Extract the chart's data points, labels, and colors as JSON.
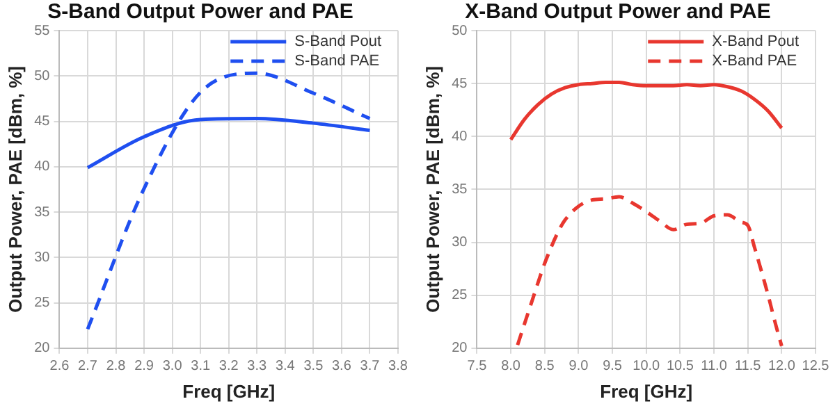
{
  "chart_data": [
    {
      "type": "line",
      "title": "S-Band Output Power and PAE",
      "xlabel": "Freq [GHz]",
      "ylabel": "Output Power, PAE [dBm, %]",
      "xlim": [
        2.6,
        3.8
      ],
      "xticks": [
        2.6,
        2.7,
        2.8,
        2.9,
        {
          "value": 3.0,
          "label": "3.0"
        },
        3.1,
        3.2,
        3.3,
        3.4,
        3.5,
        3.6,
        3.7,
        3.8
      ],
      "ylim": [
        20,
        55
      ],
      "yticks": [
        20,
        25,
        30,
        35,
        40,
        45,
        50,
        55
      ],
      "grid": true,
      "legend": "top right",
      "series": [
        {
          "name": "S-Band Pout",
          "color": "#1f4ff0",
          "line_style": "solid",
          "x": [
            2.7,
            2.9,
            3.1,
            3.3,
            3.5,
            3.7
          ],
          "values": [
            39.9,
            43.3,
            45.2,
            45.3,
            44.8,
            44.0
          ]
        },
        {
          "name": "S-Band PAE",
          "color": "#1f4ff0",
          "line_style": "dashed",
          "x": [
            2.7,
            2.9,
            3.1,
            3.3,
            3.5,
            3.7
          ],
          "values": [
            22.1,
            37.6,
            48.2,
            50.3,
            48.1,
            45.3
          ]
        }
      ]
    },
    {
      "type": "line",
      "title": "X-Band Output Power and PAE",
      "xlabel": "Freq [GHz]",
      "ylabel": "Output Power, PAE [dBm, %]",
      "xlim": [
        7.5,
        12.5
      ],
      "xticks": [
        7.5,
        {
          "value": 8.0,
          "label": "8.0"
        },
        8.5,
        {
          "value": 9.0,
          "label": "9.0"
        },
        9.5,
        {
          "value": 10.0,
          "label": "10.0"
        },
        10.5,
        {
          "value": 11.0,
          "label": "11.0"
        },
        11.5,
        {
          "value": 12.0,
          "label": "12.0"
        },
        12.5
      ],
      "ylim": [
        20,
        50
      ],
      "yticks": [
        20,
        25,
        30,
        35,
        40,
        45,
        50
      ],
      "grid": true,
      "legend": "top right",
      "series": [
        {
          "name": "X-Band Pout",
          "color": "#e8372f",
          "line_style": "solid",
          "x": [
            8.0,
            8.2,
            8.4,
            8.6,
            8.8,
            9.0,
            9.2,
            9.4,
            9.6,
            9.8,
            10.0,
            10.2,
            10.4,
            10.6,
            10.8,
            11.0,
            11.2,
            11.4,
            11.6,
            11.8,
            12.0
          ],
          "values": [
            39.7,
            41.6,
            43.0,
            44.0,
            44.6,
            44.9,
            45.0,
            45.1,
            45.1,
            44.9,
            44.8,
            44.8,
            44.8,
            44.9,
            44.8,
            44.9,
            44.7,
            44.3,
            43.5,
            42.4,
            40.8
          ]
        },
        {
          "name": "X-Band PAE",
          "color": "#e8372f",
          "line_style": "dashed",
          "x": [
            8.1,
            8.3,
            8.5,
            8.7,
            8.8,
            9.0,
            9.2,
            9.4,
            9.6,
            9.8,
            10.0,
            10.2,
            10.4,
            10.6,
            10.8,
            11.0,
            11.2,
            11.4,
            11.5,
            11.6,
            11.8,
            11.9,
            12.0
          ],
          "values": [
            20.3,
            24.2,
            28.0,
            31.0,
            32.1,
            33.4,
            34.0,
            34.1,
            34.3,
            33.7,
            32.9,
            32.0,
            31.2,
            31.7,
            31.8,
            32.5,
            32.6,
            31.9,
            31.6,
            29.5,
            25.0,
            22.5,
            20.2
          ]
        }
      ]
    }
  ]
}
